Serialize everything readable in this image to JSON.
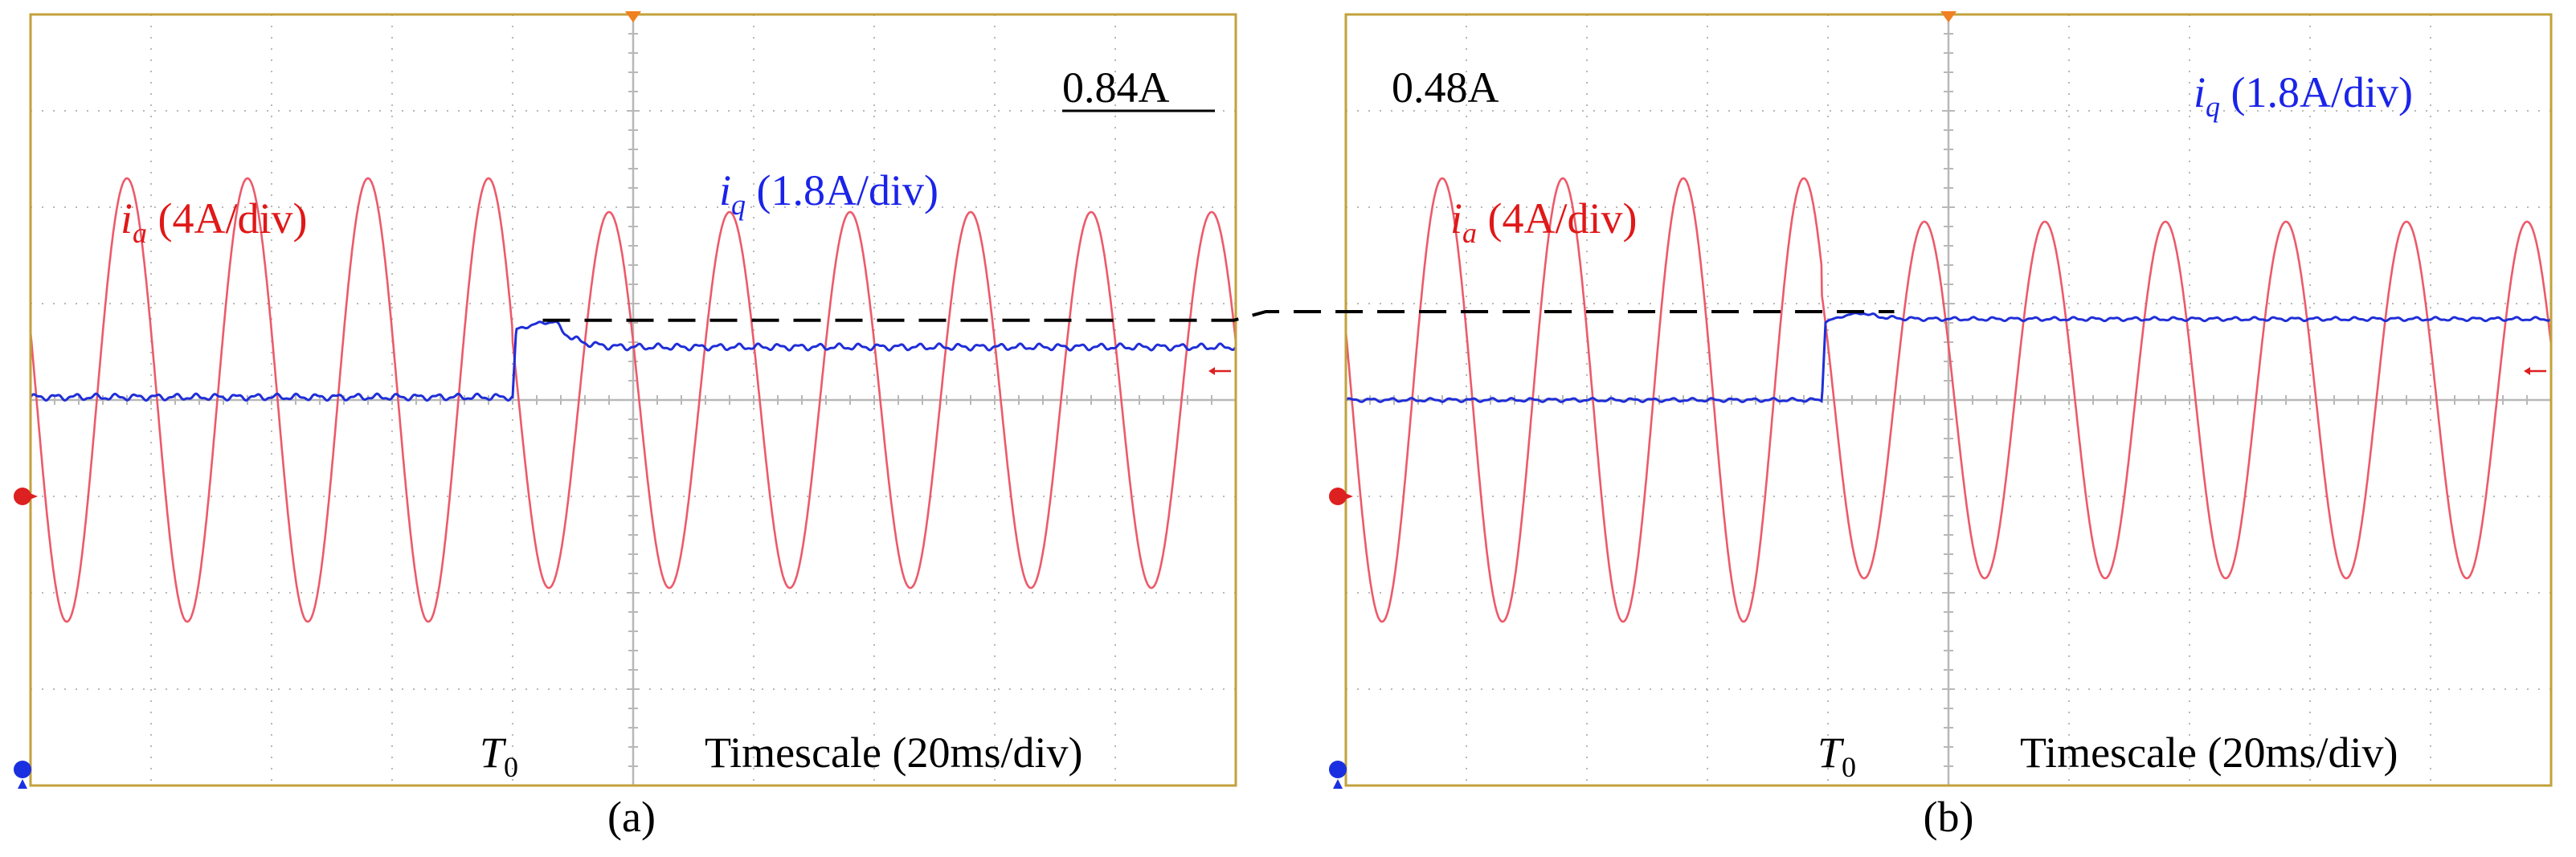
{
  "colors": {
    "frame": "#c2a23c",
    "grid": "#b8b8b8",
    "ia": "#ec5a6a",
    "iq": "#1f2ed8",
    "ref_line": "#000000",
    "text_red": "#e01818",
    "text_blue": "#1a24e8",
    "text_black": "#000000",
    "marker_red": "#dd2020",
    "marker_blue": "#1a30e0",
    "marker_orange": "#f08020"
  },
  "chart_data": [
    {
      "type": "line",
      "panel_label": "(a)",
      "x_unit_label": "Timescale (20ms/div)",
      "event_label": {
        "base": "T",
        "sub": "0"
      },
      "x_divisions": 10,
      "y_divisions": 8,
      "grid": true,
      "event_division": 4.0,
      "step_value_label": "0.84A",
      "series": [
        {
          "key": "ia",
          "label": {
            "base": "i",
            "sub": "a",
            "scale": " (4A/div)"
          },
          "period_div": 1.0,
          "phase_div": 0.55,
          "amp_before_div": 2.3,
          "amp_after_div": 1.95,
          "offset_div": 0.0
        },
        {
          "key": "iq",
          "label": {
            "base": "i",
            "sub": "q",
            "scale": " (1.8A/div)"
          },
          "level_before_div": 0.03,
          "level_after_div": 0.55,
          "peak_div": 0.81,
          "ripple_div": 0.035
        }
      ]
    },
    {
      "type": "line",
      "panel_label": "(b)",
      "x_unit_label": "Timescale (20ms/div)",
      "event_label": {
        "base": "T",
        "sub": "0"
      },
      "x_divisions": 10,
      "y_divisions": 8,
      "grid": true,
      "event_division": 3.95,
      "step_value_label": "0.48A",
      "series": [
        {
          "key": "ia",
          "label": {
            "base": "i",
            "sub": "a",
            "scale": " (4A/div)"
          },
          "period_div": 1.0,
          "phase_div": 0.55,
          "amp_before_div": 2.3,
          "amp_after_div": 1.85,
          "offset_div": 0.0
        },
        {
          "key": "iq",
          "label": {
            "base": "i",
            "sub": "q",
            "scale": " (1.8A/div)"
          },
          "level_before_div": 0.0,
          "level_after_div": 0.84,
          "peak_div": 0.9,
          "ripple_div": 0.02
        }
      ]
    }
  ]
}
